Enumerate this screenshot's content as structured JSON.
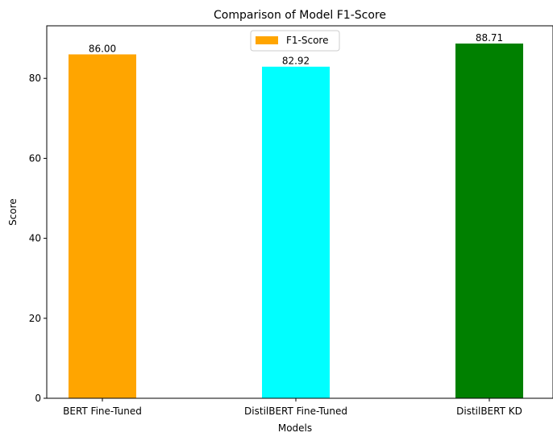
{
  "chart_data": {
    "type": "bar",
    "title": "Comparison of Model F1-Score",
    "xlabel": "Models",
    "ylabel": "Score",
    "categories": [
      "BERT Fine-Tuned",
      "DistilBERT Fine-Tuned",
      "DistilBERT KD"
    ],
    "series": [
      {
        "name": "F1-Score",
        "values": [
          86.0,
          82.92,
          88.71
        ],
        "value_labels": [
          "86.00",
          "82.92",
          "88.71"
        ]
      }
    ],
    "bar_colors": [
      "#ffa500",
      "#00ffff",
      "#008000"
    ],
    "ylim": [
      0,
      93.15
    ],
    "yticks": [
      0,
      20,
      40,
      60,
      80
    ],
    "grid": false,
    "legend": {
      "position": "upper-center",
      "color": "#ffa500"
    }
  }
}
